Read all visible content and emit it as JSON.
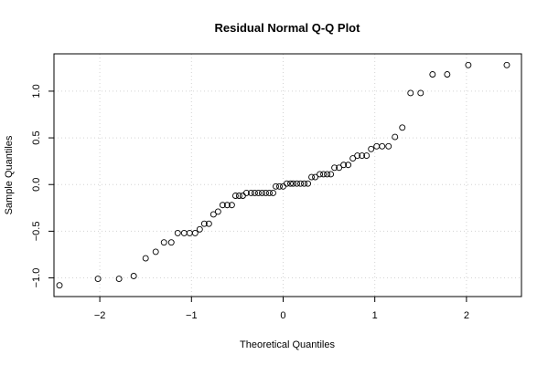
{
  "chart_data": {
    "type": "scatter",
    "title": "Residual Normal Q-Q Plot",
    "xlabel": "Theoretical Quantiles",
    "ylabel": "Sample Quantiles",
    "xlim": [
      -2.5,
      2.6
    ],
    "ylim": [
      -1.2,
      1.4
    ],
    "xticks": [
      -2,
      -1,
      0,
      1,
      2
    ],
    "yticks": [
      -1.0,
      -0.5,
      0.0,
      0.5,
      1.0
    ],
    "xtick_labels": [
      "−2",
      "−1",
      "0",
      "1",
      "2"
    ],
    "ytick_labels": [
      "−1.0",
      "−0.5",
      "0.0",
      "0.5",
      "1.0"
    ],
    "grid": true,
    "marker": "open-circle",
    "points": [
      [
        -2.44,
        -1.08
      ],
      [
        -2.02,
        -1.01
      ],
      [
        -1.79,
        -1.01
      ],
      [
        -1.63,
        -0.98
      ],
      [
        -1.5,
        -0.79
      ],
      [
        -1.39,
        -0.72
      ],
      [
        -1.3,
        -0.62
      ],
      [
        -1.22,
        -0.62
      ],
      [
        -1.15,
        -0.52
      ],
      [
        -1.08,
        -0.52
      ],
      [
        -1.02,
        -0.52
      ],
      [
        -0.96,
        -0.52
      ],
      [
        -0.91,
        -0.48
      ],
      [
        -0.86,
        -0.42
      ],
      [
        -0.81,
        -0.42
      ],
      [
        -0.76,
        -0.32
      ],
      [
        -0.71,
        -0.29
      ],
      [
        -0.66,
        -0.22
      ],
      [
        -0.61,
        -0.22
      ],
      [
        -0.56,
        -0.22
      ],
      [
        -0.52,
        -0.12
      ],
      [
        -0.48,
        -0.12
      ],
      [
        -0.44,
        -0.12
      ],
      [
        -0.4,
        -0.09
      ],
      [
        -0.35,
        -0.09
      ],
      [
        -0.31,
        -0.09
      ],
      [
        -0.27,
        -0.09
      ],
      [
        -0.23,
        -0.09
      ],
      [
        -0.19,
        -0.09
      ],
      [
        -0.15,
        -0.09
      ],
      [
        -0.11,
        -0.09
      ],
      [
        -0.08,
        -0.02
      ],
      [
        -0.04,
        -0.02
      ],
      [
        0.0,
        -0.02
      ],
      [
        0.04,
        0.01
      ],
      [
        0.08,
        0.01
      ],
      [
        0.11,
        0.01
      ],
      [
        0.15,
        0.01
      ],
      [
        0.19,
        0.01
      ],
      [
        0.23,
        0.01
      ],
      [
        0.27,
        0.01
      ],
      [
        0.31,
        0.08
      ],
      [
        0.35,
        0.08
      ],
      [
        0.4,
        0.11
      ],
      [
        0.44,
        0.11
      ],
      [
        0.48,
        0.11
      ],
      [
        0.52,
        0.11
      ],
      [
        0.56,
        0.18
      ],
      [
        0.61,
        0.18
      ],
      [
        0.66,
        0.21
      ],
      [
        0.71,
        0.21
      ],
      [
        0.76,
        0.28
      ],
      [
        0.81,
        0.31
      ],
      [
        0.86,
        0.31
      ],
      [
        0.91,
        0.31
      ],
      [
        0.96,
        0.38
      ],
      [
        1.02,
        0.41
      ],
      [
        1.08,
        0.41
      ],
      [
        1.15,
        0.41
      ],
      [
        1.22,
        0.51
      ],
      [
        1.3,
        0.61
      ],
      [
        1.39,
        0.98
      ],
      [
        1.5,
        0.98
      ],
      [
        1.63,
        1.18
      ],
      [
        1.79,
        1.18
      ],
      [
        2.02,
        1.28
      ],
      [
        2.44,
        1.28
      ]
    ]
  }
}
